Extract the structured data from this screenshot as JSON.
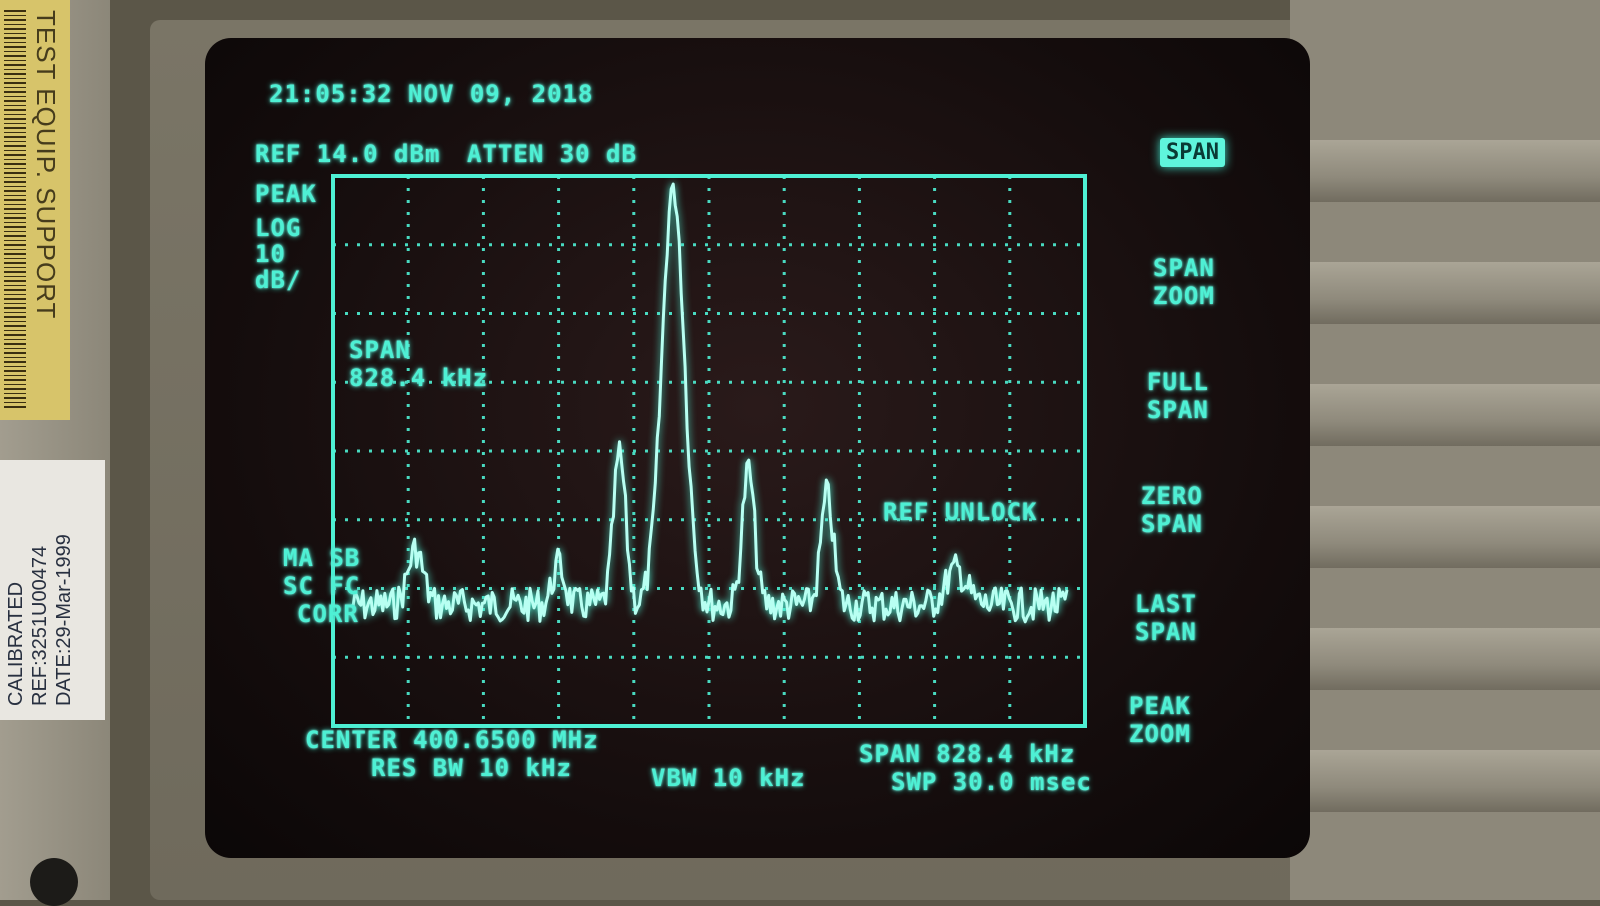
{
  "header": {
    "timestamp": "21:05:32 NOV 09, 2018",
    "ref_level": "REF 14.0 dBm",
    "attenuation": "ATTEN 30 dB"
  },
  "left_annotations": {
    "detector": "PEAK",
    "scale_line1": "LOG",
    "scale_line2": "10",
    "scale_line3": "dB/",
    "ma_sb": "MA SB",
    "sc_fc": "SC FC",
    "corr": "CORR"
  },
  "marker_box": {
    "line1": "SPAN",
    "line2": "828.4 kHz"
  },
  "warning": "REF UNLOCK",
  "footer": {
    "center": "CENTER 400.6500 MHz",
    "res_bw": "RES BW 10 kHz",
    "vbw": "VBW 10 kHz",
    "span": "SPAN 828.4 kHz",
    "sweep": "SWP 30.0 msec"
  },
  "softkeys": [
    {
      "label": "SPAN",
      "active": true
    },
    {
      "label": "SPAN\nZOOM",
      "active": false
    },
    {
      "label": "FULL\nSPAN",
      "active": false
    },
    {
      "label": "ZERO\nSPAN",
      "active": false
    },
    {
      "label": "LAST\nSPAN",
      "active": false
    },
    {
      "label": "PEAK\nZOOM",
      "active": false
    }
  ],
  "stickers": {
    "yellow": "TEST EQUIP. SUPPORT",
    "white": "CALIBRATED\nREF:3251U00474\nDATE:29-Mar-1999"
  },
  "colors": {
    "phosphor": "#4ef0d4",
    "screen_bg": "#150d0d",
    "bezel": "#6f6a5c"
  }
}
